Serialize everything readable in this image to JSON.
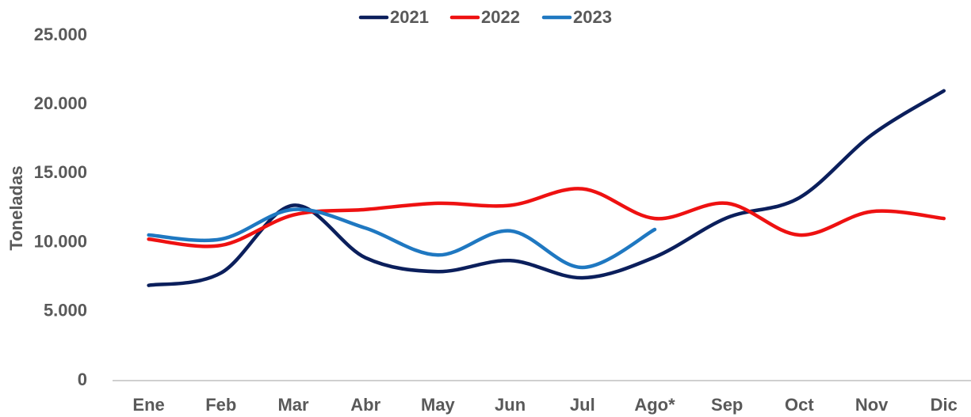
{
  "chart_data": {
    "type": "line",
    "y_label": "Toneladas",
    "categories": [
      "Ene",
      "Feb",
      "Mar",
      "Abr",
      "May",
      "Jun",
      "Jul",
      "Ago*",
      "Sep",
      "Oct",
      "Nov",
      "Dic"
    ],
    "series": [
      {
        "name": "2021",
        "color": "#0b1f5c",
        "values": [
          6900,
          7800,
          12700,
          8900,
          7900,
          8700,
          7450,
          8950,
          11800,
          13250,
          17800,
          21000
        ]
      },
      {
        "name": "2022",
        "color": "#ee1111",
        "values": [
          10250,
          9800,
          12000,
          12400,
          12850,
          12700,
          13900,
          11750,
          12850,
          10550,
          12250,
          11750
        ]
      },
      {
        "name": "2023",
        "color": "#1f78c1",
        "values": [
          10550,
          10250,
          12400,
          11050,
          9100,
          10850,
          8200,
          10950,
          null,
          null,
          null,
          null
        ]
      }
    ],
    "ylim": [
      0,
      25000
    ],
    "yticks": [
      {
        "value": 0,
        "label": "0"
      },
      {
        "value": 5000,
        "label": "5.000"
      },
      {
        "value": 10000,
        "label": "10.000"
      },
      {
        "value": 15000,
        "label": "15.000"
      },
      {
        "value": 20000,
        "label": "20.000"
      },
      {
        "value": 25000,
        "label": "25.000"
      }
    ],
    "grid": false,
    "legend": "top"
  }
}
